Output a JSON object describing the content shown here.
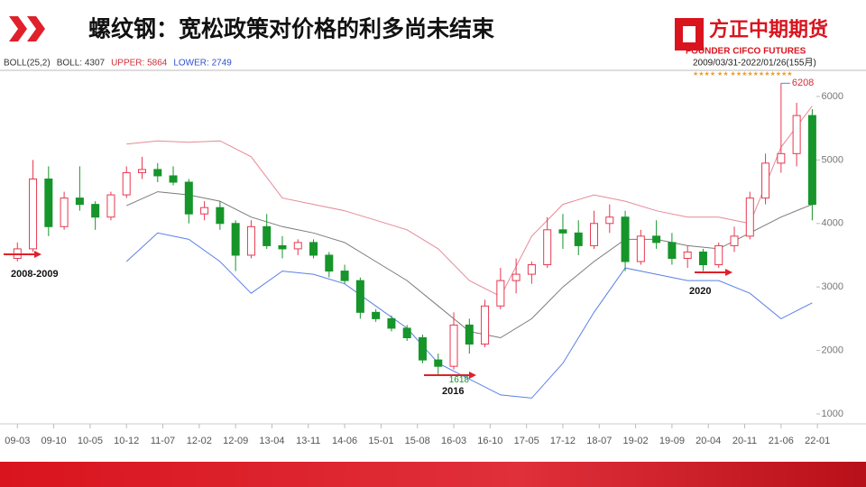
{
  "header": {
    "title": "螺纹钢：宽松政策对价格的利多尚未结束",
    "brand": "方正中期期货",
    "brand_en": "FOUNDER CIFCO FUTURES"
  },
  "chart_data": {
    "type": "candlestick",
    "info": [
      "BOLL(25,2)",
      "BOLL: 4307",
      "UPPER: 5864",
      "LOWER: 2749"
    ],
    "info_colors": [
      "#333333",
      "#333333",
      "#d0303a",
      "#3050d0"
    ],
    "range": "2009/03/31-2022/01/26(155月)",
    "stars": "★★★★  ★★  ★★★★★★★★★★★",
    "x": [
      0,
      3,
      6,
      9,
      12,
      15,
      18,
      21,
      24,
      27,
      30,
      33,
      36,
      39,
      42,
      45,
      48,
      51,
      54,
      57,
      60,
      63,
      66,
      69,
      72,
      75,
      78,
      81,
      84,
      87,
      90,
      93,
      96,
      99,
      102,
      105,
      108,
      111,
      114,
      117,
      120,
      123,
      126,
      129,
      132,
      135,
      138,
      141,
      144,
      147,
      150,
      153
    ],
    "open": [
      3450,
      3600,
      4700,
      3950,
      4400,
      4300,
      4100,
      4450,
      4800,
      4850,
      4750,
      4650,
      4150,
      4250,
      4000,
      3500,
      3950,
      3650,
      3600,
      3700,
      3500,
      3250,
      3100,
      2600,
      2500,
      2350,
      2200,
      1850,
      1750,
      2400,
      2100,
      2700,
      3100,
      3200,
      3350,
      3900,
      3850,
      3650,
      4000,
      4100,
      3400,
      3800,
      3700,
      3450,
      3550,
      3350,
      3650,
      3800,
      4400,
      4950,
      5100,
      5700
    ],
    "high": [
      3700,
      5000,
      4900,
      4500,
      4900,
      4350,
      4500,
      4900,
      5050,
      4950,
      4900,
      4700,
      4350,
      4350,
      4050,
      4050,
      4150,
      3800,
      3750,
      3750,
      3550,
      3350,
      3150,
      2650,
      2550,
      2400,
      2250,
      1950,
      2600,
      2500,
      2800,
      3300,
      3450,
      3400,
      4100,
      4150,
      4050,
      4200,
      4300,
      4200,
      3900,
      4050,
      3850,
      3650,
      3600,
      3700,
      3950,
      4500,
      5100,
      6208,
      5900,
      5800
    ],
    "low": [
      3400,
      3550,
      3800,
      3900,
      4200,
      3900,
      4050,
      4400,
      4700,
      4650,
      4600,
      4000,
      4050,
      3900,
      3250,
      3450,
      3600,
      3450,
      3500,
      3450,
      3150,
      3050,
      2500,
      2450,
      2300,
      2150,
      1800,
      1618,
      1700,
      1950,
      2050,
      2650,
      2900,
      3050,
      3300,
      3600,
      3500,
      3600,
      3850,
      3250,
      3350,
      3600,
      3350,
      3300,
      3250,
      3300,
      3550,
      3750,
      4300,
      4800,
      4900,
      4050
    ],
    "close": [
      3600,
      4700,
      3950,
      4400,
      4300,
      4100,
      4450,
      4800,
      4850,
      4750,
      4650,
      4150,
      4250,
      4000,
      3500,
      3950,
      3650,
      3600,
      3700,
      3500,
      3250,
      3100,
      2600,
      2500,
      2350,
      2200,
      1850,
      1750,
      2400,
      2100,
      2700,
      3100,
      3200,
      3350,
      3900,
      3850,
      3650,
      4000,
      4100,
      3400,
      3800,
      3700,
      3450,
      3550,
      3350,
      3650,
      3800,
      4400,
      4950,
      5100,
      5700,
      4300
    ],
    "up_color": "#e8384f",
    "down_color": "#16952a",
    "bands": {
      "x": [
        21,
        27,
        33,
        39,
        45,
        51,
        57,
        63,
        69,
        75,
        81,
        87,
        93,
        99,
        105,
        111,
        117,
        123,
        129,
        135,
        141,
        147,
        153
      ],
      "upper": [
        5250,
        5300,
        5280,
        5300,
        5050,
        4400,
        4300,
        4200,
        4050,
        3900,
        3600,
        3100,
        2850,
        3800,
        4300,
        4450,
        4350,
        4200,
        4100,
        4100,
        4000,
        5200,
        5850
      ],
      "middle": [
        4280,
        4500,
        4450,
        4350,
        4100,
        3950,
        3850,
        3700,
        3400,
        3100,
        2700,
        2300,
        2200,
        2500,
        3000,
        3400,
        3750,
        3750,
        3650,
        3600,
        3850,
        4100,
        4300
      ],
      "lower": [
        3400,
        3850,
        3750,
        3400,
        2900,
        3250,
        3200,
        3050,
        2700,
        2350,
        1800,
        1550,
        1300,
        1250,
        1800,
        2600,
        3300,
        3200,
        3100,
        3100,
        2900,
        2500,
        2750
      ],
      "upper_color": "#e68a98",
      "middle_color": "#7a7a7a",
      "lower_color": "#5a80e6"
    },
    "xlim": [
      -3,
      153.8
    ],
    "xticks": [
      {
        "value": 0,
        "label": "09-03"
      },
      {
        "value": 7,
        "label": "09-10"
      },
      {
        "value": 14,
        "label": "10-05"
      },
      {
        "value": 21,
        "label": "10-12"
      },
      {
        "value": 28,
        "label": "11-07"
      },
      {
        "value": 35,
        "label": "12-02"
      },
      {
        "value": 42,
        "label": "12-09"
      },
      {
        "value": 49,
        "label": "13-04"
      },
      {
        "value": 56,
        "label": "13-11"
      },
      {
        "value": 63,
        "label": "14-06"
      },
      {
        "value": 70,
        "label": "15-01"
      },
      {
        "value": 77,
        "label": "15-08"
      },
      {
        "value": 84,
        "label": "16-03"
      },
      {
        "value": 91,
        "label": "16-10"
      },
      {
        "value": 98,
        "label": "17-05"
      },
      {
        "value": 105,
        "label": "17-12"
      },
      {
        "value": 112,
        "label": "18-07"
      },
      {
        "value": 119,
        "label": "19-02"
      },
      {
        "value": 126,
        "label": "19-09"
      },
      {
        "value": 133,
        "label": "20-04"
      },
      {
        "value": 140,
        "label": "20-11"
      },
      {
        "value": 147,
        "label": "21-06"
      },
      {
        "value": 154,
        "label": "22-01"
      }
    ],
    "ylim": [
      886,
      6241
    ],
    "yticks": [
      1000,
      2000,
      3000,
      4000,
      5000,
      6000
    ],
    "annotations": [
      "2008-2009",
      "2016",
      "2020"
    ],
    "extremes": [
      6208,
      1618
    ]
  }
}
